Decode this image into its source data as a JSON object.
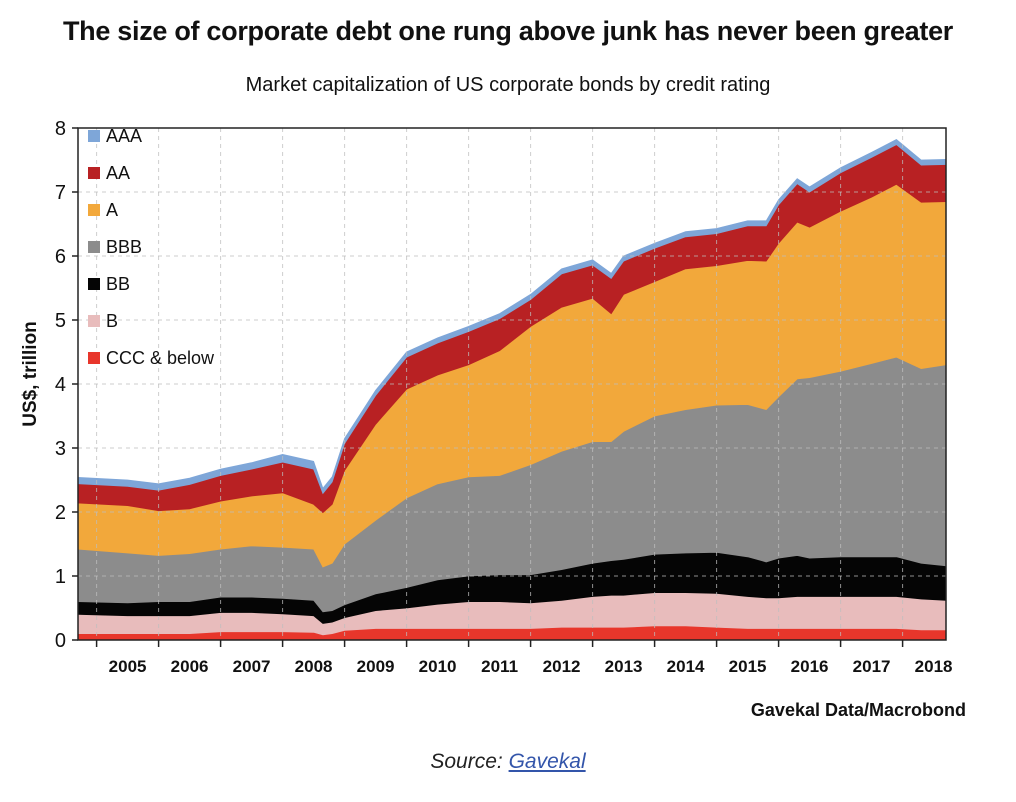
{
  "title": "The size of corporate debt one rung above junk has never been greater",
  "subtitle": "Market capitalization of US corporate bonds by credit rating",
  "credit": "Gavekal Data/Macrobond",
  "source": {
    "label": "Source:",
    "link_text": "Gavekal"
  },
  "chart_data": {
    "type": "area",
    "stacked": true,
    "ylabel": "US$, trillion",
    "ylim": [
      0,
      8
    ],
    "yticks": [
      "0",
      "1",
      "2",
      "3",
      "4",
      "5",
      "6",
      "7",
      "8"
    ],
    "xlim": [
      2004.7,
      2018.7
    ],
    "xticks": [
      "2005",
      "2006",
      "2007",
      "2008",
      "2009",
      "2010",
      "2011",
      "2012",
      "2013",
      "2014",
      "2015",
      "2016",
      "2017",
      "2018"
    ],
    "grid": true,
    "legend_position": "top-left",
    "x": [
      2004.7,
      2005.5,
      2006.0,
      2006.5,
      2007.0,
      2007.5,
      2008.0,
      2008.5,
      2008.65,
      2008.8,
      2009.0,
      2009.5,
      2010.0,
      2010.5,
      2011.0,
      2011.5,
      2012.0,
      2012.5,
      2013.0,
      2013.3,
      2013.5,
      2014.0,
      2014.5,
      2015.0,
      2015.5,
      2015.8,
      2016.0,
      2016.3,
      2016.5,
      2017.0,
      2017.5,
      2017.9,
      2018.3,
      2018.7
    ],
    "series": [
      {
        "name": "CCC & below",
        "color": "#e8362b",
        "values": [
          0.1,
          0.1,
          0.1,
          0.1,
          0.13,
          0.13,
          0.13,
          0.12,
          0.08,
          0.1,
          0.15,
          0.18,
          0.18,
          0.18,
          0.18,
          0.18,
          0.18,
          0.2,
          0.2,
          0.2,
          0.2,
          0.22,
          0.22,
          0.2,
          0.18,
          0.18,
          0.18,
          0.18,
          0.18,
          0.18,
          0.18,
          0.18,
          0.16,
          0.16
        ]
      },
      {
        "name": "B",
        "color": "#e8bcbc",
        "values": [
          0.3,
          0.28,
          0.28,
          0.28,
          0.3,
          0.3,
          0.28,
          0.26,
          0.18,
          0.18,
          0.2,
          0.28,
          0.32,
          0.38,
          0.42,
          0.42,
          0.4,
          0.42,
          0.48,
          0.5,
          0.5,
          0.52,
          0.52,
          0.53,
          0.5,
          0.48,
          0.48,
          0.5,
          0.5,
          0.5,
          0.5,
          0.5,
          0.48,
          0.46
        ]
      },
      {
        "name": "BB",
        "color": "#050505",
        "values": [
          0.2,
          0.2,
          0.22,
          0.22,
          0.24,
          0.24,
          0.24,
          0.24,
          0.18,
          0.18,
          0.2,
          0.26,
          0.32,
          0.38,
          0.4,
          0.42,
          0.44,
          0.48,
          0.52,
          0.54,
          0.56,
          0.6,
          0.62,
          0.64,
          0.62,
          0.56,
          0.62,
          0.64,
          0.6,
          0.62,
          0.62,
          0.62,
          0.56,
          0.54
        ]
      },
      {
        "name": "BBB",
        "color": "#8c8c8c",
        "values": [
          0.82,
          0.78,
          0.72,
          0.75,
          0.75,
          0.8,
          0.8,
          0.8,
          0.7,
          0.74,
          0.95,
          1.15,
          1.4,
          1.5,
          1.55,
          1.55,
          1.72,
          1.85,
          1.9,
          1.86,
          2.0,
          2.16,
          2.24,
          2.3,
          2.38,
          2.38,
          2.52,
          2.76,
          2.82,
          2.9,
          3.02,
          3.12,
          3.04,
          3.14
        ]
      },
      {
        "name": "A",
        "color": "#f2a83b",
        "values": [
          0.72,
          0.74,
          0.7,
          0.7,
          0.75,
          0.78,
          0.85,
          0.7,
          0.85,
          0.92,
          1.15,
          1.5,
          1.7,
          1.7,
          1.75,
          1.95,
          2.16,
          2.25,
          2.24,
          2.0,
          2.14,
          2.1,
          2.2,
          2.18,
          2.25,
          2.32,
          2.4,
          2.45,
          2.35,
          2.5,
          2.6,
          2.7,
          2.6,
          2.55
        ]
      },
      {
        "name": "AA",
        "color": "#b82123",
        "values": [
          0.3,
          0.3,
          0.32,
          0.38,
          0.4,
          0.42,
          0.48,
          0.55,
          0.3,
          0.35,
          0.42,
          0.45,
          0.5,
          0.5,
          0.52,
          0.5,
          0.42,
          0.52,
          0.52,
          0.55,
          0.52,
          0.52,
          0.5,
          0.5,
          0.54,
          0.55,
          0.6,
          0.6,
          0.55,
          0.6,
          0.62,
          0.62,
          0.58,
          0.58
        ]
      },
      {
        "name": "AAA",
        "color": "#7ea6d8",
        "values": [
          0.1,
          0.1,
          0.1,
          0.1,
          0.1,
          0.1,
          0.12,
          0.12,
          0.08,
          0.08,
          0.08,
          0.08,
          0.08,
          0.08,
          0.08,
          0.08,
          0.08,
          0.08,
          0.08,
          0.08,
          0.08,
          0.08,
          0.08,
          0.08,
          0.08,
          0.08,
          0.08,
          0.08,
          0.08,
          0.08,
          0.08,
          0.08,
          0.08,
          0.08
        ]
      }
    ]
  }
}
